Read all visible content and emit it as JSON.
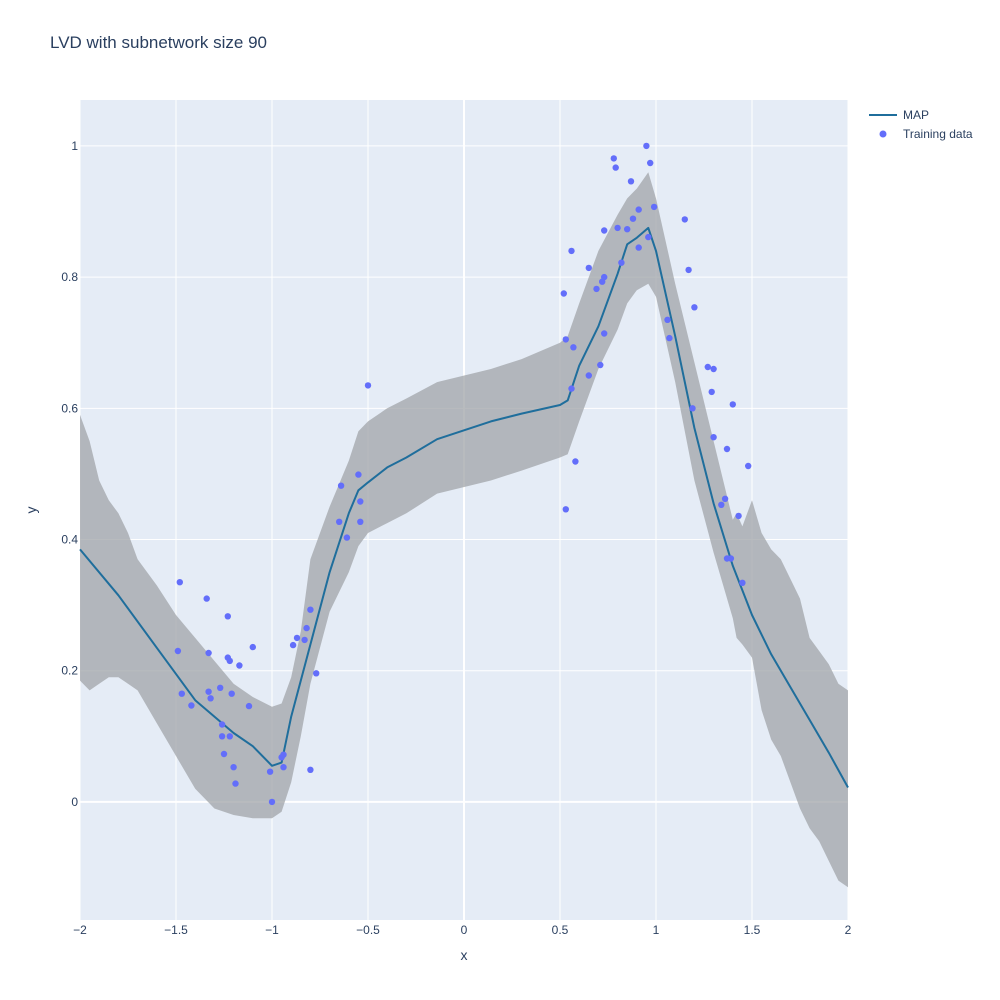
{
  "chart_data": {
    "type": "line",
    "title": "LVD with subnetwork size 90",
    "xlabel": "x",
    "ylabel": "y",
    "xlim": [
      -2,
      2
    ],
    "ylim": [
      -0.18,
      1.07
    ],
    "x_ticks": [
      -2,
      -1.5,
      -1,
      -0.5,
      0,
      0.5,
      1,
      1.5,
      2
    ],
    "x_tick_labels": [
      "−2",
      "−1.5",
      "−1",
      "−0.5",
      "0",
      "0.5",
      "1",
      "1.5",
      "2"
    ],
    "y_ticks": [
      0,
      0.2,
      0.4,
      0.6,
      0.8,
      1
    ],
    "y_tick_labels": [
      "0",
      "0.2",
      "0.4",
      "0.6",
      "0.8",
      "1"
    ],
    "grid": true,
    "legend_position": "top-right",
    "colors": {
      "plot_bg": "#e5ecf6",
      "grid": "#ffffff",
      "map_line": "#1f6e9c",
      "band": "#a0a4a8",
      "points": "#636efa"
    },
    "series": [
      {
        "name": "MAP",
        "kind": "line",
        "x": [
          -2,
          -1.8,
          -1.6,
          -1.4,
          -1.2,
          -1.1,
          -1.0,
          -0.95,
          -0.9,
          -0.8,
          -0.7,
          -0.6,
          -0.55,
          -0.5,
          -0.4,
          -0.3,
          -0.14,
          0.14,
          0.3,
          0.5,
          0.54,
          0.6,
          0.7,
          0.8,
          0.85,
          0.9,
          0.96,
          1.0,
          1.1,
          1.2,
          1.3,
          1.4,
          1.5,
          1.6,
          1.7,
          1.8,
          1.9,
          2.0
        ],
        "y": [
          0.385,
          0.315,
          0.235,
          0.155,
          0.105,
          0.085,
          0.055,
          0.06,
          0.13,
          0.24,
          0.35,
          0.44,
          0.475,
          0.487,
          0.51,
          0.525,
          0.553,
          0.58,
          0.592,
          0.605,
          0.612,
          0.665,
          0.725,
          0.805,
          0.85,
          0.86,
          0.875,
          0.84,
          0.71,
          0.57,
          0.455,
          0.36,
          0.285,
          0.225,
          0.175,
          0.125,
          0.075,
          0.022
        ]
      },
      {
        "name": "",
        "kind": "band",
        "x": [
          -2,
          -1.95,
          -1.9,
          -1.85,
          -1.8,
          -1.75,
          -1.7,
          -1.6,
          -1.5,
          -1.4,
          -1.3,
          -1.2,
          -1.1,
          -1.0,
          -0.95,
          -0.9,
          -0.85,
          -0.8,
          -0.7,
          -0.6,
          -0.55,
          -0.5,
          -0.4,
          -0.3,
          -0.14,
          0.14,
          0.3,
          0.5,
          0.54,
          0.6,
          0.7,
          0.8,
          0.85,
          0.9,
          0.96,
          1.0,
          1.1,
          1.2,
          1.3,
          1.4,
          1.42,
          1.45,
          1.5,
          1.55,
          1.6,
          1.65,
          1.7,
          1.75,
          1.8,
          1.85,
          1.9,
          1.95,
          2.0
        ],
        "upper": [
          0.59,
          0.55,
          0.49,
          0.46,
          0.44,
          0.41,
          0.37,
          0.33,
          0.285,
          0.25,
          0.215,
          0.18,
          0.16,
          0.145,
          0.15,
          0.19,
          0.26,
          0.37,
          0.45,
          0.52,
          0.565,
          0.58,
          0.6,
          0.615,
          0.64,
          0.66,
          0.675,
          0.7,
          0.71,
          0.76,
          0.84,
          0.895,
          0.92,
          0.935,
          0.96,
          0.92,
          0.79,
          0.67,
          0.55,
          0.43,
          0.44,
          0.42,
          0.46,
          0.41,
          0.385,
          0.37,
          0.34,
          0.31,
          0.25,
          0.23,
          0.21,
          0.18,
          0.17
        ],
        "lower": [
          0.185,
          0.17,
          0.18,
          0.19,
          0.19,
          0.18,
          0.17,
          0.12,
          0.07,
          0.02,
          -0.01,
          -0.02,
          -0.025,
          -0.025,
          -0.015,
          0.03,
          0.1,
          0.18,
          0.29,
          0.35,
          0.39,
          0.41,
          0.425,
          0.44,
          0.47,
          0.49,
          0.505,
          0.525,
          0.53,
          0.58,
          0.66,
          0.72,
          0.76,
          0.78,
          0.79,
          0.77,
          0.64,
          0.49,
          0.38,
          0.28,
          0.25,
          0.24,
          0.22,
          0.14,
          0.095,
          0.07,
          0.03,
          -0.01,
          -0.04,
          -0.06,
          -0.09,
          -0.12,
          -0.13
        ]
      },
      {
        "name": "Training data",
        "kind": "scatter",
        "points": [
          [
            -1.49,
            0.23
          ],
          [
            -1.48,
            0.335
          ],
          [
            -1.47,
            0.165
          ],
          [
            -1.42,
            0.147
          ],
          [
            -1.34,
            0.31
          ],
          [
            -1.33,
            0.227
          ],
          [
            -1.33,
            0.168
          ],
          [
            -1.32,
            0.158
          ],
          [
            -1.27,
            0.174
          ],
          [
            -1.26,
            0.118
          ],
          [
            -1.26,
            0.1
          ],
          [
            -1.25,
            0.073
          ],
          [
            -1.23,
            0.283
          ],
          [
            -1.23,
            0.22
          ],
          [
            -1.22,
            0.215
          ],
          [
            -1.22,
            0.1
          ],
          [
            -1.21,
            0.165
          ],
          [
            -1.2,
            0.053
          ],
          [
            -1.19,
            0.028
          ],
          [
            -1.17,
            0.208
          ],
          [
            -1.12,
            0.146
          ],
          [
            -1.1,
            0.236
          ],
          [
            -1.01,
            0.046
          ],
          [
            -1.0,
            0.0
          ],
          [
            -0.95,
            0.068
          ],
          [
            -0.94,
            0.072
          ],
          [
            -0.94,
            0.053
          ],
          [
            -0.89,
            0.239
          ],
          [
            -0.87,
            0.25
          ],
          [
            -0.83,
            0.247
          ],
          [
            -0.82,
            0.265
          ],
          [
            -0.8,
            0.293
          ],
          [
            -0.8,
            0.049
          ],
          [
            -0.77,
            0.196
          ],
          [
            -0.65,
            0.427
          ],
          [
            -0.64,
            0.482
          ],
          [
            -0.61,
            0.403
          ],
          [
            -0.55,
            0.499
          ],
          [
            -0.54,
            0.458
          ],
          [
            -0.54,
            0.427
          ],
          [
            -0.5,
            0.635
          ],
          [
            0.52,
            0.775
          ],
          [
            0.53,
            0.705
          ],
          [
            0.53,
            0.446
          ],
          [
            0.56,
            0.63
          ],
          [
            0.56,
            0.84
          ],
          [
            0.57,
            0.693
          ],
          [
            0.58,
            0.519
          ],
          [
            0.65,
            0.814
          ],
          [
            0.65,
            0.65
          ],
          [
            0.69,
            0.782
          ],
          [
            0.71,
            0.666
          ],
          [
            0.72,
            0.793
          ],
          [
            0.73,
            0.8
          ],
          [
            0.73,
            0.871
          ],
          [
            0.73,
            0.714
          ],
          [
            0.78,
            0.981
          ],
          [
            0.79,
            0.967
          ],
          [
            0.8,
            0.875
          ],
          [
            0.82,
            0.822
          ],
          [
            0.85,
            0.873
          ],
          [
            0.87,
            0.946
          ],
          [
            0.88,
            0.889
          ],
          [
            0.91,
            0.903
          ],
          [
            0.91,
            0.845
          ],
          [
            0.95,
            1.0
          ],
          [
            0.96,
            0.861
          ],
          [
            0.97,
            0.974
          ],
          [
            0.99,
            0.907
          ],
          [
            1.06,
            0.735
          ],
          [
            1.07,
            0.707
          ],
          [
            1.15,
            0.888
          ],
          [
            1.17,
            0.811
          ],
          [
            1.19,
            0.6
          ],
          [
            1.2,
            0.754
          ],
          [
            1.27,
            0.663
          ],
          [
            1.29,
            0.625
          ],
          [
            1.3,
            0.66
          ],
          [
            1.3,
            0.556
          ],
          [
            1.34,
            0.453
          ],
          [
            1.36,
            0.462
          ],
          [
            1.37,
            0.371
          ],
          [
            1.37,
            0.538
          ],
          [
            1.39,
            0.371
          ],
          [
            1.4,
            0.606
          ],
          [
            1.43,
            0.436
          ],
          [
            1.45,
            0.334
          ],
          [
            1.48,
            0.512
          ]
        ]
      }
    ]
  }
}
